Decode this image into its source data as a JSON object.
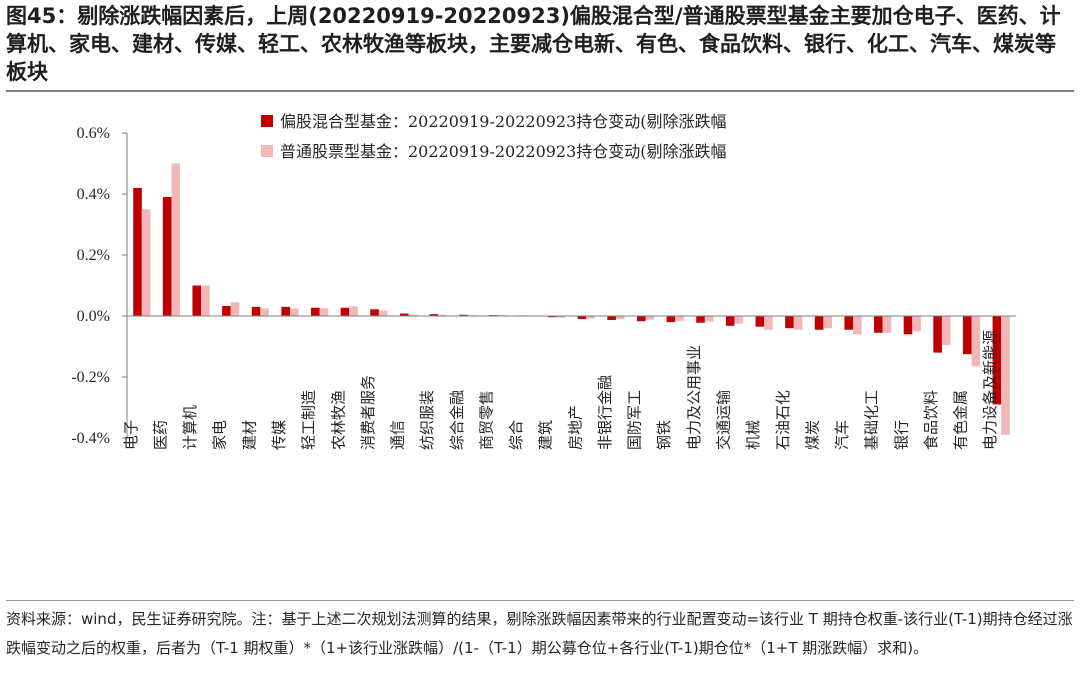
{
  "title": "图45：剔除涨跌幅因素后，上周(20220919-20220923)偏股混合型/普通股票型基金主要加仓电子、医药、计算机、家电、建材、传媒、轻工、农林牧渔等板块，主要减仓电新、有色、食品饮料、银行、化工、汽车、煤炭等板块",
  "source_note": "资料来源：wind，民生证券研究院。注：基于上述二次规划法测算的结果，剔除涨跌幅因素带来的行业配置变动=该行业 T 期持仓权重-该行业(T-1)期持仓经过涨跌幅变动之后的权重，后者为（T-1 期权重）*（1+该行业涨跌幅）/(1-（T-1）期公募仓位+各行业(T-1)期仓位*（1+T 期涨跌幅）求和)。",
  "chart_data": {
    "type": "bar",
    "categories": [
      "电子",
      "医药",
      "计算机",
      "家电",
      "建材",
      "传媒",
      "轻工制造",
      "农林牧渔",
      "消费者服务",
      "通信",
      "纺织服装",
      "综合金融",
      "商贸零售",
      "综合",
      "建筑",
      "房地产",
      "非银行金融",
      "国防军工",
      "钢铁",
      "电力及公用事业",
      "交通运输",
      "机械",
      "石油石化",
      "煤炭",
      "汽车",
      "基础化工",
      "银行",
      "食品饮料",
      "有色金属",
      "电力设备及新能源"
    ],
    "series": [
      {
        "name": "偏股混合型基金：20220919-20220923持仓变动(剔除涨跌幅",
        "color": "#c00000",
        "values": [
          0.42,
          0.39,
          0.1,
          0.033,
          0.03,
          0.03,
          0.027,
          0.027,
          0.022,
          0.008,
          0.006,
          0.004,
          0.003,
          0.002,
          -0.004,
          -0.01,
          -0.013,
          -0.017,
          -0.02,
          -0.022,
          -0.032,
          -0.035,
          -0.04,
          -0.045,
          -0.045,
          -0.055,
          -0.06,
          -0.12,
          -0.125,
          -0.29
        ]
      },
      {
        "name": "普通股票型基金：20220919-20220923持仓变动(剔除涨跌幅",
        "color": "#f2b8b8",
        "values": [
          0.35,
          0.5,
          0.1,
          0.045,
          0.025,
          0.025,
          0.025,
          0.032,
          0.018,
          0.005,
          0.004,
          0.003,
          0.003,
          0.002,
          -0.006,
          -0.008,
          -0.01,
          -0.012,
          -0.016,
          -0.018,
          -0.025,
          -0.045,
          -0.045,
          -0.04,
          -0.06,
          -0.055,
          -0.05,
          -0.095,
          -0.165,
          -0.39
        ]
      }
    ],
    "ylim": [
      -0.4,
      0.6
    ],
    "yticks": [
      "-0.4%",
      "-0.2%",
      "0.0%",
      "0.2%",
      "0.4%",
      "0.6%"
    ],
    "ytick_values": [
      -0.4,
      -0.2,
      0.0,
      0.2,
      0.4,
      0.6
    ],
    "value_unit": "%",
    "grid": false,
    "legend_position": "top-left"
  }
}
